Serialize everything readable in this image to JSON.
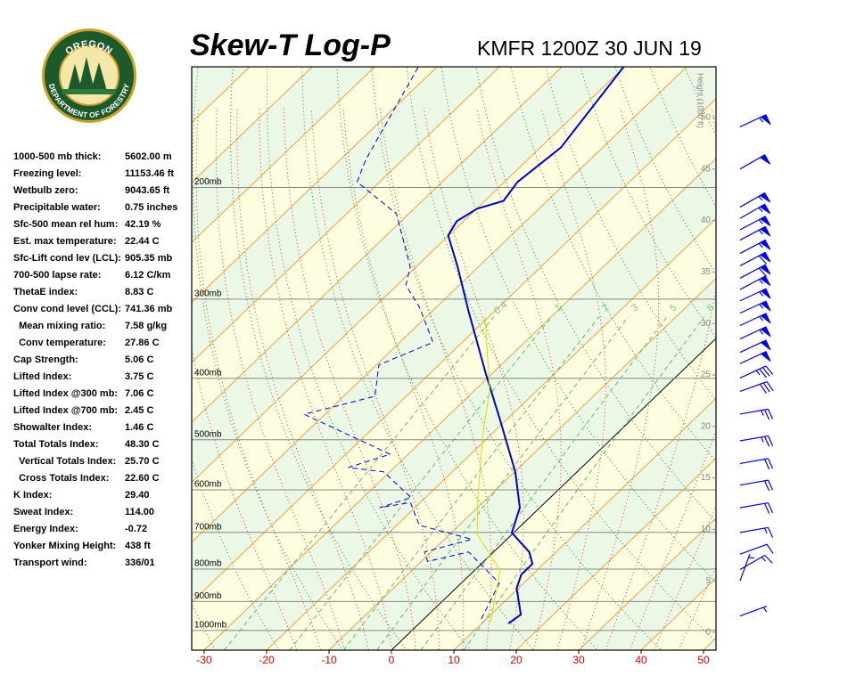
{
  "chart_data": {
    "type": "skewt",
    "title": "Skew-T Log-P",
    "subtitle": "KMFR 1200Z 30 JUN 19",
    "logo": {
      "top": "OREGON",
      "bottom": "DEPARTMENT OF FORESTRY"
    },
    "xlim": [
      -32,
      52
    ],
    "xticks": [
      -30,
      -20,
      -10,
      0,
      10,
      20,
      30,
      40,
      50
    ],
    "ylim": [
      1074,
      129
    ],
    "yticks": [
      {
        "value": 1000,
        "label": "1000mb"
      },
      {
        "value": 900,
        "label": "900mb"
      },
      {
        "value": 800,
        "label": "800mb"
      },
      {
        "value": 700,
        "label": "700mb"
      },
      {
        "value": 600,
        "label": "600mb"
      },
      {
        "value": 500,
        "label": "500mb"
      },
      {
        "value": 400,
        "label": "400mb"
      },
      {
        "value": 300,
        "label": "300mb"
      },
      {
        "value": 200,
        "label": "200mb"
      }
    ],
    "height_label": "Height (1000 ft)",
    "height_ticks": [
      0,
      5,
      10,
      15,
      20,
      25,
      30,
      35,
      40,
      45,
      50
    ],
    "mixing_ratio_lines": [
      0.4,
      1,
      2,
      3,
      5,
      8
    ],
    "series": [
      {
        "color": "#0000cc",
        "style": "solid",
        "width": 2,
        "pressure": [
          975,
          944,
          857,
          816,
          785,
          752,
          701,
          640,
          562,
          463,
          394,
          314,
          267,
          238,
          226,
          216,
          210,
          196,
          173,
          129
        ],
        "values": [
          14.3,
          14.8,
          9.7,
          8.2,
          8.2,
          5.7,
          -0.3,
          -3.2,
          -9.9,
          -21.3,
          -30.9,
          -44.1,
          -53.3,
          -60.1,
          -61.1,
          -59.9,
          -57,
          -57.9,
          -56.7,
          -60.1
        ]
      },
      {
        "color": "#0000cc",
        "style": "dashed",
        "width": 1,
        "pressure": [
          959,
          842,
          752,
          778,
          752,
          718,
          682,
          628,
          640,
          617,
          562,
          553,
          527,
          456,
          427,
          381,
          351,
          309,
          285,
          267,
          220,
          196,
          181,
          129
        ],
        "values": [
          9.2,
          6.1,
          -4,
          -9,
          -11.1,
          -5.6,
          -16.4,
          -21.6,
          -25.7,
          -22.3,
          -31,
          -37.4,
          -32.9,
          -53.3,
          -45,
          -49.6,
          -44.7,
          -52.7,
          -58.6,
          -60.9,
          -72,
          -83.6,
          -85.9,
          -93
        ]
      },
      {
        "color": "#dddd00",
        "style": "solid",
        "width": 1,
        "pressure": [
          975,
          804,
          705,
          617,
          491,
          418,
          320
        ],
        "values": [
          11.4,
          4.1,
          -5.6,
          -11.6,
          -21.3,
          -27.6,
          -40.6
        ]
      }
    ],
    "wind_barbs": [
      {
        "height": 49.1,
        "direction": 65,
        "speed": 55
      },
      {
        "height": 45.0,
        "direction": 60,
        "speed": 50
      },
      {
        "height": 41.3,
        "direction": 60,
        "speed": 55
      },
      {
        "height": 40.2,
        "direction": 60,
        "speed": 55
      },
      {
        "height": 39.1,
        "direction": 62,
        "speed": 55
      },
      {
        "height": 38.1,
        "direction": 62,
        "speed": 55
      },
      {
        "height": 36.8,
        "direction": 62,
        "speed": 55
      },
      {
        "height": 35.6,
        "direction": 62,
        "speed": 60
      },
      {
        "height": 34.4,
        "direction": 62,
        "speed": 60
      },
      {
        "height": 33.3,
        "direction": 62,
        "speed": 55
      },
      {
        "height": 32.2,
        "direction": 65,
        "speed": 55
      },
      {
        "height": 31.0,
        "direction": 65,
        "speed": 55
      },
      {
        "height": 29.8,
        "direction": 65,
        "speed": 55
      },
      {
        "height": 28.5,
        "direction": 65,
        "speed": 55
      },
      {
        "height": 27.2,
        "direction": 65,
        "speed": 50
      },
      {
        "height": 26.1,
        "direction": 65,
        "speed": 50
      },
      {
        "height": 24.7,
        "direction": 65,
        "speed": 35
      },
      {
        "height": 23.4,
        "direction": 70,
        "speed": 30
      },
      {
        "height": 21.2,
        "direction": 80,
        "speed": 25
      },
      {
        "height": 18.6,
        "direction": 80,
        "speed": 25
      },
      {
        "height": 16.4,
        "direction": 80,
        "speed": 20
      },
      {
        "height": 14.3,
        "direction": 80,
        "speed": 20
      },
      {
        "height": 12.1,
        "direction": 80,
        "speed": 20
      },
      {
        "height": 9.7,
        "direction": 80,
        "speed": 15
      },
      {
        "height": 7.6,
        "direction": 70,
        "speed": 10
      },
      {
        "height": 6.1,
        "direction": 60,
        "speed": 15
      },
      {
        "height": 5.0,
        "direction": 20,
        "speed": 5
      },
      {
        "height": 1.6,
        "direction": 70,
        "speed": 5
      }
    ],
    "indices": [
      {
        "label": "1000-500 mb thick:",
        "value": "5602.00 m"
      },
      {
        "label": "Freezing level:",
        "value": "11153.46 ft"
      },
      {
        "label": "Wetbulb zero:",
        "value": "9043.65 ft"
      },
      {
        "label": "Precipitable water:",
        "value": "0.75 inches"
      },
      {
        "label": "Sfc-500 mean rel hum:",
        "value": "42.19 %"
      },
      {
        "label": "Est. max temperature:",
        "value": "22.44 C"
      },
      {
        "label": "Sfc-Lift cond lev (LCL):",
        "value": "905.35 mb"
      },
      {
        "label": "700-500 lapse rate:",
        "value": "6.12 C/km"
      },
      {
        "label": "ThetaE index:",
        "value": "8.83 C"
      },
      {
        "label": "Conv cond level (CCL):",
        "value": "741.36 mb"
      },
      {
        "label": "  Mean mixing ratio:",
        "value": "7.58 g/kg"
      },
      {
        "label": "  Conv temperature:",
        "value": "27.86 C"
      },
      {
        "label": "Cap Strength:",
        "value": "5.06 C"
      },
      {
        "label": "Lifted Index:",
        "value": "3.75 C"
      },
      {
        "label": "Lifted Index @300 mb:",
        "value": "7.06 C"
      },
      {
        "label": "Lifted Index @700 mb:",
        "value": "2.45 C"
      },
      {
        "label": "Showalter Index:",
        "value": "1.46 C"
      },
      {
        "label": "Total Totals Index:",
        "value": "48.30 C"
      },
      {
        "label": "  Vertical Totals Index:",
        "value": "25.70 C"
      },
      {
        "label": "  Cross Totals Index:",
        "value": "22.60 C"
      },
      {
        "label": "K Index:",
        "value": "29.40"
      },
      {
        "label": "Sweat Index:",
        "value": "114.00"
      },
      {
        "label": "Energy Index:",
        "value": "-0.72"
      },
      {
        "label": "Yonker Mixing Height:",
        "value": "438 ft"
      },
      {
        "label": "Transport wind:",
        "value": "336/01"
      }
    ]
  }
}
